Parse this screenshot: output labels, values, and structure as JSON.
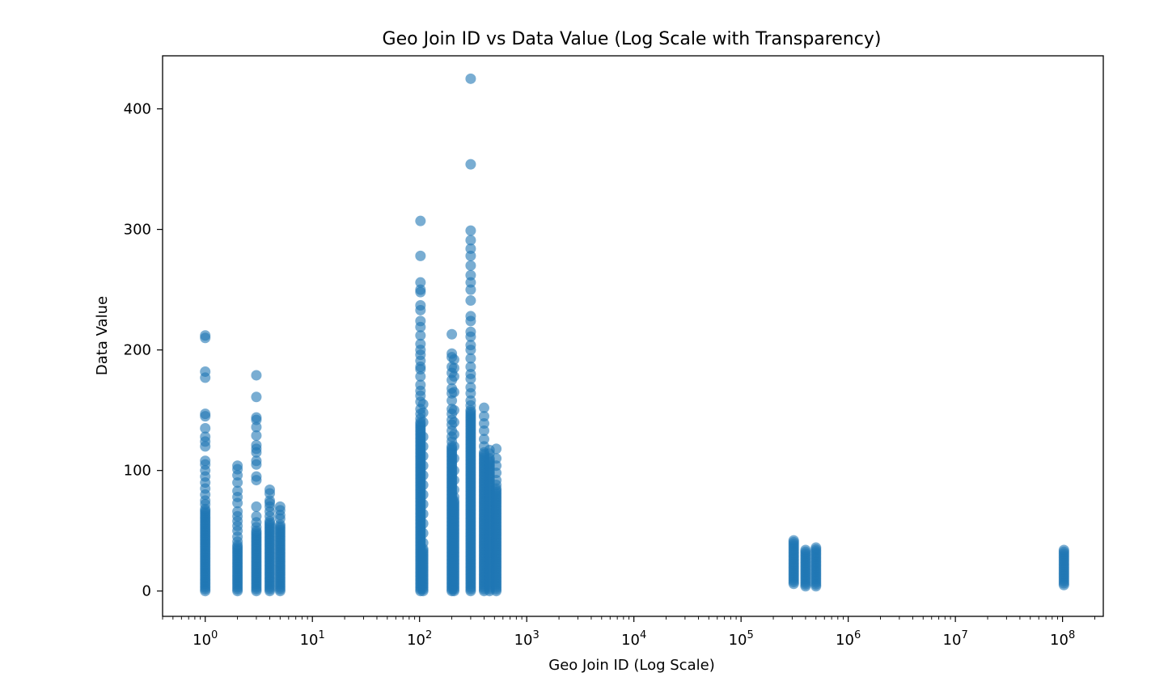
{
  "chart_data": {
    "type": "scatter",
    "title": "Geo Join ID vs Data Value (Log Scale with Transparency)",
    "xlabel": "Geo Join ID (Log Scale)",
    "ylabel": "Data Value",
    "x_scale": "log",
    "xlim": [
      0.4,
      240000000
    ],
    "ylim": [
      -21,
      444
    ],
    "x_ticks": [
      {
        "value": 1,
        "base": "10",
        "exp": "0"
      },
      {
        "value": 10,
        "base": "10",
        "exp": "1"
      },
      {
        "value": 100,
        "base": "10",
        "exp": "2"
      },
      {
        "value": 1000,
        "base": "10",
        "exp": "3"
      },
      {
        "value": 10000,
        "base": "10",
        "exp": "4"
      },
      {
        "value": 100000,
        "base": "10",
        "exp": "5"
      },
      {
        "value": 1000000,
        "base": "10",
        "exp": "6"
      },
      {
        "value": 10000000,
        "base": "10",
        "exp": "7"
      },
      {
        "value": 100000000,
        "base": "10",
        "exp": "8"
      }
    ],
    "y_ticks": [
      {
        "value": 0,
        "label": "0"
      },
      {
        "value": 100,
        "label": "100"
      },
      {
        "value": 200,
        "label": "200"
      },
      {
        "value": 300,
        "label": "300"
      },
      {
        "value": 400,
        "label": "400"
      }
    ],
    "grid": false,
    "point_color": "#1f77b4",
    "point_alpha": 0.6,
    "groups": [
      {
        "x": 1,
        "min": 0,
        "max": 68,
        "outliers": [
          212,
          210,
          182,
          177,
          147,
          145,
          135,
          128,
          124,
          120,
          108,
          105,
          100,
          95,
          90,
          85,
          80,
          75,
          72
        ]
      },
      {
        "x": 2,
        "min": 0,
        "max": 38,
        "outliers": [
          104,
          101,
          96,
          90,
          83,
          78,
          73,
          66,
          62,
          58,
          54,
          50,
          45,
          41
        ]
      },
      {
        "x": 3,
        "min": 0,
        "max": 50,
        "outliers": [
          179,
          161,
          144,
          142,
          136,
          129,
          121,
          118,
          115,
          108,
          105,
          95,
          92,
          70,
          62,
          57,
          53
        ]
      },
      {
        "x": 4,
        "min": 0,
        "max": 58,
        "outliers": [
          84,
          81,
          75,
          73,
          70,
          66,
          62
        ]
      },
      {
        "x": 5,
        "min": 0,
        "max": 55,
        "outliers": [
          70,
          67,
          63,
          60
        ]
      },
      {
        "x": 102,
        "min": 0,
        "max": 140,
        "outliers": [
          307,
          278,
          256,
          250,
          248,
          237,
          233,
          224,
          219,
          212,
          205,
          200,
          196,
          191,
          186,
          184,
          178,
          171,
          166,
          162,
          157,
          151,
          147,
          143
        ]
      },
      {
        "x": 108,
        "min": 0,
        "max": 35,
        "outliers": [
          155,
          148,
          140,
          128,
          120,
          112,
          104,
          96,
          88,
          80,
          72,
          64,
          56,
          48,
          40
        ]
      },
      {
        "x": 200,
        "min": 0,
        "max": 120,
        "outliers": [
          213,
          197,
          194,
          186,
          181,
          175,
          168,
          164,
          158,
          151,
          147,
          142,
          138,
          133,
          128,
          124
        ]
      },
      {
        "x": 210,
        "min": 0,
        "max": 75,
        "outliers": [
          192,
          185,
          178,
          165,
          150,
          140,
          130,
          120,
          110,
          100,
          92,
          84,
          78
        ]
      },
      {
        "x": 300,
        "min": 0,
        "max": 150,
        "outliers": [
          425,
          354,
          299,
          291,
          284,
          278,
          270,
          262,
          256,
          250,
          241,
          228,
          224,
          215,
          211,
          204,
          200,
          193,
          186,
          180,
          176,
          169,
          164,
          158,
          154
        ]
      },
      {
        "x": 400,
        "min": 0,
        "max": 115,
        "outliers": [
          152,
          145,
          139,
          133,
          126,
          120
        ]
      },
      {
        "x": 450,
        "min": 0,
        "max": 110,
        "outliers": [
          117,
          114
        ]
      },
      {
        "x": 520,
        "min": 0,
        "max": 85,
        "outliers": [
          118,
          110,
          104,
          98,
          92,
          88
        ]
      },
      {
        "x": 310000,
        "min": 6,
        "max": 42,
        "outliers": []
      },
      {
        "x": 400000,
        "min": 4,
        "max": 34,
        "outliers": []
      },
      {
        "x": 500000,
        "min": 4,
        "max": 36,
        "outliers": []
      },
      {
        "x": 103000000,
        "min": 5,
        "max": 34,
        "outliers": []
      }
    ]
  }
}
